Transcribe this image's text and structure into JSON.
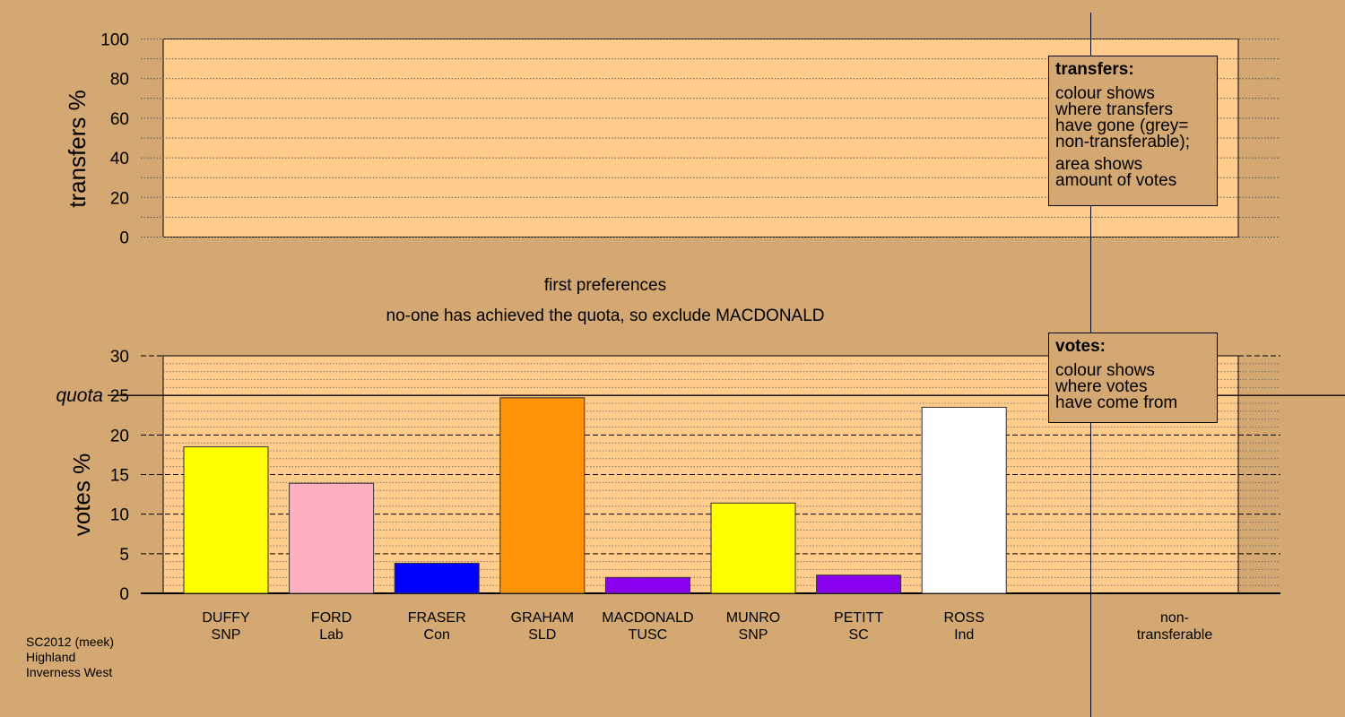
{
  "top_axis_label": "transfers %",
  "bottom_axis_label": "votes %",
  "quota_label": "quota",
  "stage_title": "first preferences",
  "stage_subtitle": "no-one has achieved the quota, so exclude MACDONALD",
  "legend_transfers": {
    "heading": "transfers:",
    "line1": "colour shows",
    "line2": "where transfers",
    "line3": "have gone (grey=",
    "line4": "non-transferable);",
    "line5": "area shows",
    "line6": "amount of votes"
  },
  "legend_votes": {
    "heading": "votes:",
    "line1": "colour shows",
    "line2": "where votes",
    "line3": "have come from"
  },
  "footer": {
    "line1": "SC2012 (meek)",
    "line2": "Highland",
    "line3": "Inverness West"
  },
  "chart_data": [
    {
      "type": "bar",
      "ylabel": "transfers %",
      "ylim": [
        0,
        100
      ],
      "yticks": [
        0,
        20,
        40,
        60,
        80,
        100
      ],
      "values": []
    },
    {
      "type": "bar",
      "ylabel": "votes %",
      "ylim": [
        0,
        30
      ],
      "yticks": [
        0,
        5,
        10,
        15,
        20,
        25,
        30
      ],
      "quota": 25,
      "categories": [
        {
          "name": "DUFFY",
          "party": "SNP",
          "value": 18.5,
          "color": "#ffff00"
        },
        {
          "name": "FORD",
          "party": "Lab",
          "value": 13.9,
          "color": "#ffb0c0"
        },
        {
          "name": "FRASER",
          "party": "Con",
          "value": 3.8,
          "color": "#0000ff"
        },
        {
          "name": "GRAHAM",
          "party": "SLD",
          "value": 24.7,
          "color": "#ff9408"
        },
        {
          "name": "MACDONALD",
          "party": "TUSC",
          "value": 2.0,
          "color": "#8800ee"
        },
        {
          "name": "MUNRO",
          "party": "SNP",
          "value": 11.4,
          "color": "#ffff00"
        },
        {
          "name": "PETITT",
          "party": "SC",
          "value": 2.3,
          "color": "#8800ee"
        },
        {
          "name": "ROSS",
          "party": "Ind",
          "value": 23.5,
          "color": "#ffffff"
        }
      ],
      "extra_category": {
        "line1": "non-",
        "line2": "transferable"
      }
    }
  ],
  "colors": {
    "background": "#d4a872",
    "plot_fill": "#ffcc8c"
  }
}
